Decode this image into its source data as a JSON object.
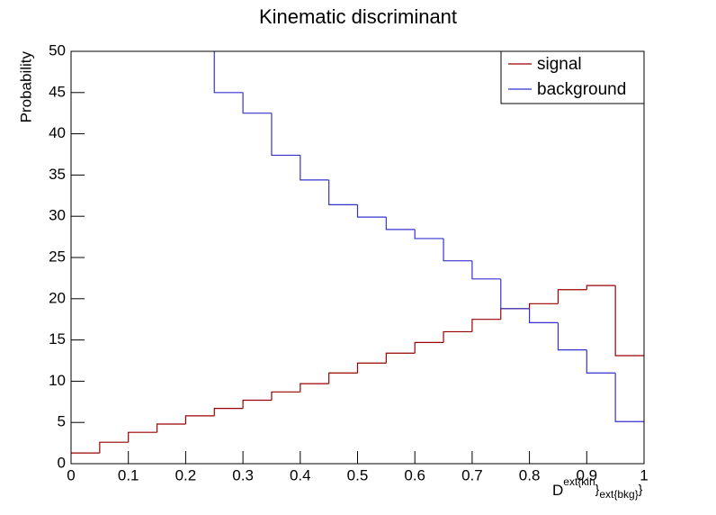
{
  "chart_data": {
    "type": "histogram",
    "title": "Kinematic discriminant",
    "x_label": {
      "base": "D",
      "sup": "ext{kin",
      "mid": "}",
      "sub": "ext{bkg}",
      "end": "}"
    },
    "y_label": "Probability",
    "bins": [
      0,
      0.05,
      0.1,
      0.15,
      0.2,
      0.25,
      0.3,
      0.35,
      0.4,
      0.45,
      0.5,
      0.55,
      0.6,
      0.65,
      0.7,
      0.75,
      0.8,
      0.85,
      0.9,
      0.95,
      1
    ],
    "series": [
      {
        "name": "signal",
        "color": "#990000",
        "values": [
          1.3,
          2.6,
          3.8,
          4.8,
          5.8,
          6.7,
          7.7,
          8.7,
          9.7,
          11.0,
          12.2,
          13.4,
          14.7,
          16.0,
          17.5,
          18.8,
          19.4,
          21.1,
          21.6,
          13.1
        ]
      },
      {
        "name": "background",
        "color": "#3333cc",
        "values": [
          null,
          null,
          null,
          null,
          null,
          45.0,
          42.5,
          37.4,
          34.4,
          31.4,
          29.9,
          28.4,
          27.3,
          24.6,
          22.4,
          18.8,
          17.1,
          13.8,
          11.0,
          5.1
        ]
      }
    ],
    "xlim": [
      0,
      1
    ],
    "ylim": [
      0,
      50
    ],
    "xticks": [
      0,
      0.1,
      0.2,
      0.3,
      0.4,
      0.5,
      0.6,
      0.7,
      0.8,
      0.9,
      1
    ],
    "yticks": [
      0,
      5,
      10,
      15,
      20,
      25,
      30,
      35,
      40,
      45,
      50
    ],
    "legend": "top-right"
  }
}
